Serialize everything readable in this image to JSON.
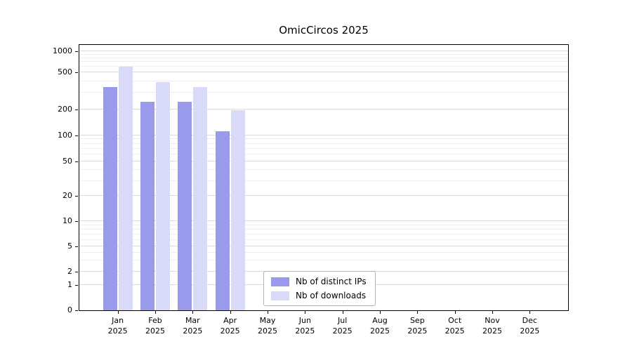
{
  "chart_data": {
    "type": "bar",
    "title": "OmicCircos 2025",
    "categories": [
      "Jan",
      "Feb",
      "Mar",
      "Apr",
      "May",
      "Jun",
      "Jul",
      "Aug",
      "Sep",
      "Oct",
      "Nov",
      "Dec"
    ],
    "year": "2025",
    "series": [
      {
        "name": "Nb of distinct IPs",
        "color": "#9a9aec",
        "values": [
          350,
          240,
          240,
          110,
          0,
          0,
          0,
          0,
          0,
          0,
          0,
          0
        ]
      },
      {
        "name": "Nb of downloads",
        "color": "#d9d9f8",
        "values": [
          600,
          390,
          350,
          195,
          0,
          0,
          0,
          0,
          0,
          0,
          0,
          0
        ]
      }
    ],
    "yticks": [
      0,
      1,
      2,
      5,
      10,
      20,
      50,
      100,
      200,
      500,
      1000
    ],
    "ylim": [
      0,
      1000
    ],
    "scale": "symlog",
    "grid": true,
    "legend_position": "bottom-center-inside"
  }
}
